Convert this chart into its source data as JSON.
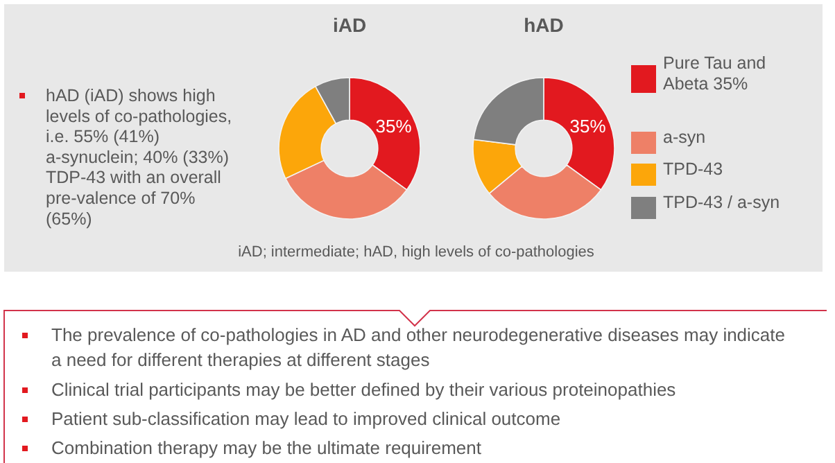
{
  "chart_data": [
    {
      "type": "donut",
      "title": "iAD",
      "categories": [
        null,
        null,
        null,
        null
      ],
      "values": [
        35,
        33,
        24,
        8
      ],
      "colors": [
        "#e2191f",
        "#ee8067",
        "#fca60a",
        "#7f7f7f"
      ],
      "value_labels": [
        "35%",
        null,
        null,
        null
      ],
      "annotations": [
        "hAD (iAD) shows high levels of co-pathologies, i.e. 55% (41%) a-synuclein; 40% (33%) TDP-43 with an overall pre-valence of 70% (65%)"
      ]
    },
    {
      "type": "donut",
      "title": "hAD",
      "categories": [
        "Pure Tau and Abeta 35%",
        "a-syn",
        "TPD-43",
        "TPD-43 / a-syn"
      ],
      "values": [
        35,
        29,
        13,
        23
      ],
      "colors": [
        "#e2191f",
        "#ee8067",
        "#fca60a",
        "#7f7f7f"
      ],
      "value_labels": [
        "35%",
        null,
        null,
        null
      ],
      "legend": "right",
      "annotations": [
        "iAD; intermediate; hAD, high levels of co-pathologies",
        "The prevalence of co-pathologies in AD and other neurodegenerative diseases may indicate a need for different therapies at different stages",
        "Clinical trial participants may be better defined by their various proteinopathies",
        "Patient sub-classification may lead to improved clinical outcome",
        "Combination therapy may be the ultimate requirement"
      ]
    }
  ]
}
